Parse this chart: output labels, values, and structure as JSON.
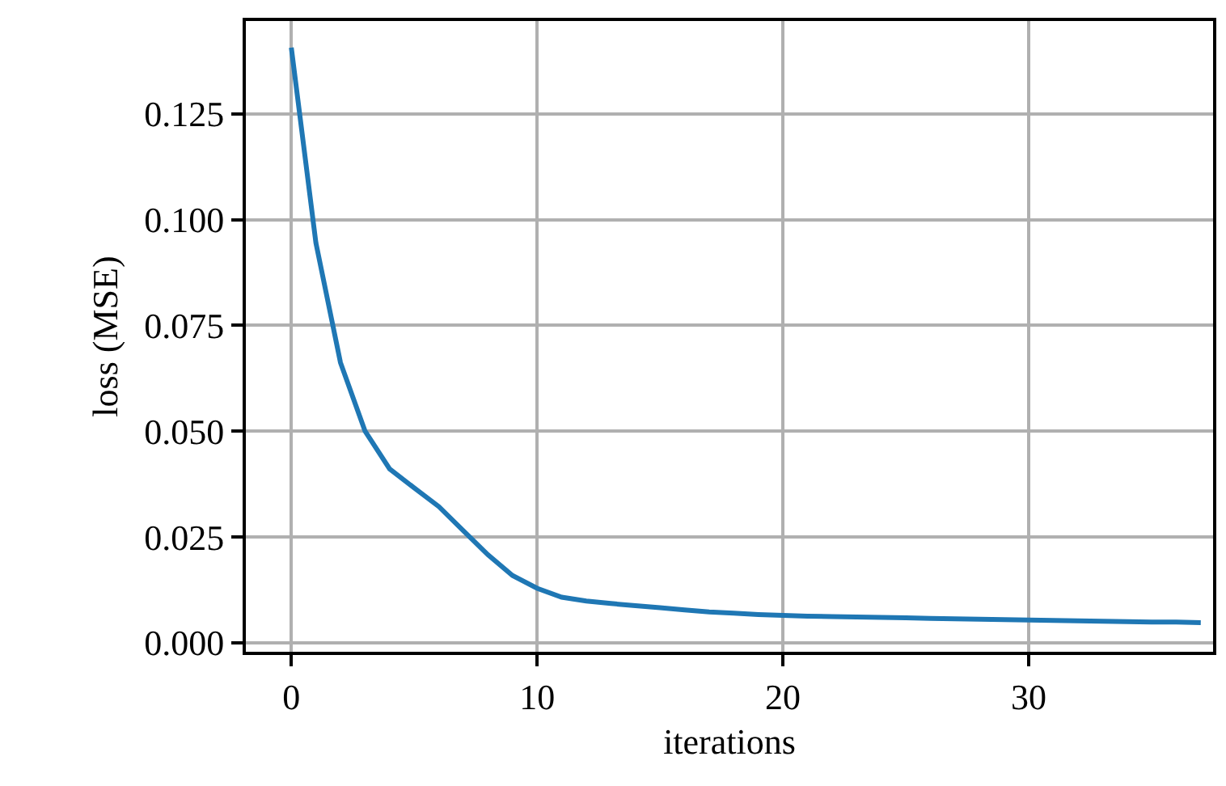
{
  "chart_data": {
    "type": "line",
    "xlabel": "iterations",
    "ylabel": "loss (MSE)",
    "x": [
      0,
      1,
      2,
      3,
      4,
      5,
      6,
      7,
      8,
      9,
      10,
      11,
      12,
      13,
      14,
      15,
      16,
      17,
      18,
      19,
      20,
      21,
      22,
      23,
      24,
      25,
      26,
      27,
      28,
      29,
      30,
      31,
      32,
      33,
      34,
      35,
      36,
      37
    ],
    "series": [
      {
        "color": "#1f77b4",
        "values": [
          0.1406,
          0.0945,
          0.0662,
          0.05,
          0.0411,
          0.0366,
          0.0322,
          0.0265,
          0.0208,
          0.0159,
          0.0129,
          0.0108,
          0.0099,
          0.0093,
          0.0088,
          0.0083,
          0.0078,
          0.0073,
          0.007,
          0.0067,
          0.0065,
          0.0063,
          0.0062,
          0.0061,
          0.006,
          0.0059,
          0.0058,
          0.0057,
          0.0056,
          0.0055,
          0.0054,
          0.0053,
          0.0052,
          0.0051,
          0.005,
          0.0049,
          0.0049,
          0.0048
        ]
      }
    ],
    "xlim": [
      -1.85,
      37.5
    ],
    "ylim": [
      -0.0021,
      0.1469
    ],
    "xticks": [
      0,
      10,
      20,
      30
    ],
    "yticks": [
      {
        "value": 0,
        "label": "0.000"
      },
      {
        "value": 0.025,
        "label": "0.025"
      },
      {
        "value": 0.05,
        "label": "0.050"
      },
      {
        "value": 0.075,
        "label": "0.075"
      },
      {
        "value": 0.1,
        "label": "0.100"
      },
      {
        "value": 0.125,
        "label": "0.125"
      }
    ],
    "grid": true,
    "marker": "none",
    "line_style": "solid"
  }
}
